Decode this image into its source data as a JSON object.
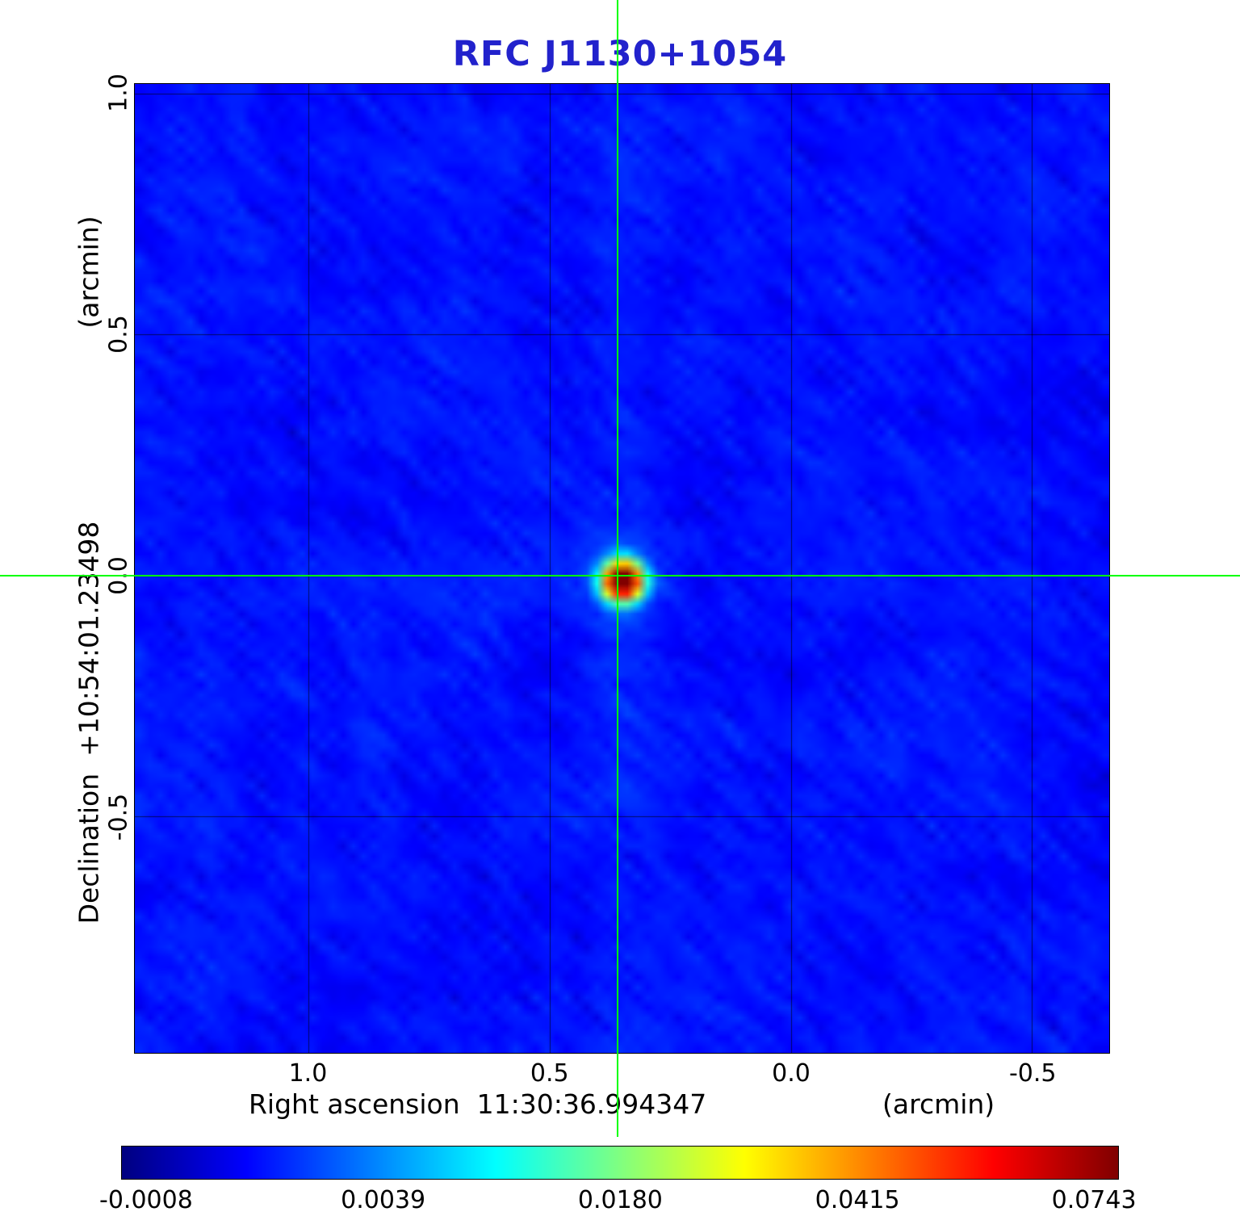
{
  "title": "RFC J1130+1054",
  "colors": {
    "title": "#2222cc",
    "crosshair": "#00ff00",
    "grid": "rgba(0,0,0,0.6)"
  },
  "axes": {
    "y": {
      "unit_label": "(arcmin)",
      "axis_label": "Declination  +10:54:01.23498",
      "tick_labels": [
        "1.0",
        "0.5",
        "0.0",
        "-0.5"
      ]
    },
    "x": {
      "unit_label": "(arcmin)",
      "axis_label": "Right ascension  11:30:36.994347",
      "tick_labels": [
        "1.0",
        "0.5",
        "0.0",
        "-0.5"
      ]
    }
  },
  "colorbar": {
    "tick_labels": [
      "-0.0008",
      "0.0039",
      "0.0180",
      "0.0415",
      "0.0743"
    ]
  },
  "chart_data": {
    "type": "heatmap",
    "title": "RFC J1130+1054",
    "xlabel": "Right ascension 11:30:36.994347 (arcmin)",
    "ylabel": "Declination +10:54:01.23498 (arcmin)",
    "x_ticks": [
      1.0,
      0.5,
      0.0,
      -0.5
    ],
    "y_ticks": [
      1.0,
      0.5,
      0.0,
      -0.5
    ],
    "xlim": [
      1.36,
      -0.66
    ],
    "ylim": [
      -0.99,
      1.02
    ],
    "x_axis_reversed": true,
    "grid": true,
    "colormap": "jet",
    "color_scale": "sqrt",
    "value_min": -0.0008,
    "value_max": 0.0743,
    "colorbar_ticks": [
      -0.0008,
      0.0039,
      0.018,
      0.0415,
      0.0743
    ],
    "background_mean": 0.0007,
    "noise_sigma": 0.0008,
    "source": {
      "ra_offset_arcmin": 0.36,
      "dec_offset_arcmin": 0.0,
      "peak": 0.0743
    },
    "crosshair": {
      "ra_offset_arcmin": 0.36,
      "dec_offset_arcmin": 0.0
    }
  }
}
